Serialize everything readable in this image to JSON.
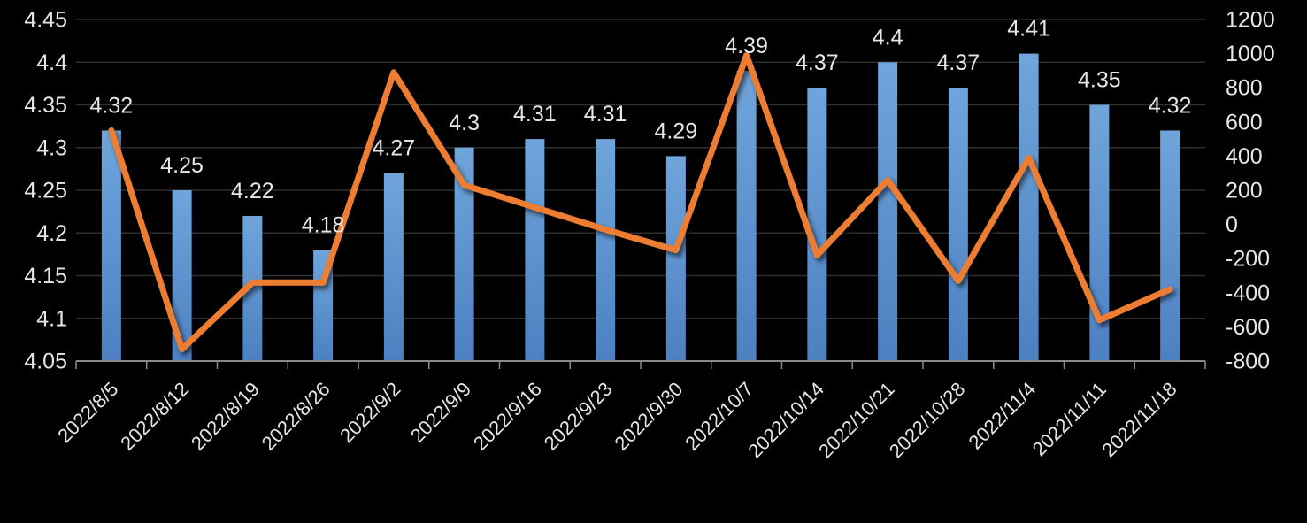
{
  "chart_data": {
    "type": "combo-bar-line",
    "title": "",
    "categories": [
      "2022/8/5",
      "2022/8/12",
      "2022/8/19",
      "2022/8/26",
      "2022/9/2",
      "2022/9/9",
      "2022/9/16",
      "2022/9/23",
      "2022/9/30",
      "2022/10/7",
      "2022/10/14",
      "2022/10/21",
      "2022/10/28",
      "2022/11/4",
      "2022/11/11",
      "2022/11/18"
    ],
    "series": [
      {
        "name": "bar-series",
        "type": "bar",
        "axis": "left",
        "values": [
          4.32,
          4.25,
          4.22,
          4.18,
          4.27,
          4.3,
          4.31,
          4.31,
          4.29,
          4.39,
          4.37,
          4.4,
          4.37,
          4.41,
          4.35,
          4.32
        ],
        "data_labels": [
          "4.32",
          "4.25",
          "4.22",
          "4.18",
          "4.27",
          "4.3",
          "4.31",
          "4.31",
          "4.29",
          "4.39",
          "4.37",
          "4.4",
          "4.37",
          "4.41",
          "4.35",
          "4.32"
        ]
      },
      {
        "name": "line-series",
        "type": "line",
        "axis": "right",
        "values": [
          550,
          -730,
          -340,
          -340,
          890,
          230,
          100,
          -30,
          -150,
          990,
          -180,
          260,
          -330,
          390,
          -560,
          -380
        ]
      }
    ],
    "left_axis": {
      "min": 4.05,
      "max": 4.45,
      "step": 0.05,
      "tick_labels": [
        "4.45",
        "4.4",
        "4.35",
        "4.3",
        "4.25",
        "4.2",
        "4.15",
        "4.1",
        "4.05"
      ]
    },
    "right_axis": {
      "min": -800,
      "max": 1200,
      "step": 200,
      "tick_labels": [
        "1200",
        "1000",
        "800",
        "600",
        "400",
        "200",
        "0",
        "-200",
        "-400",
        "-600",
        "-800"
      ]
    },
    "layout": {
      "grid": "horizontal-only",
      "legend": "none",
      "x_label_rotation_deg": 45
    },
    "colors": {
      "background": "#000000",
      "bar_gradient_top": "#6FA5DB",
      "bar_gradient_bottom": "#4C80C1",
      "line": "#ED7D31",
      "gridline": "#303030",
      "axis_line": "#8a8a8a",
      "text": "#e6e6e4"
    }
  }
}
